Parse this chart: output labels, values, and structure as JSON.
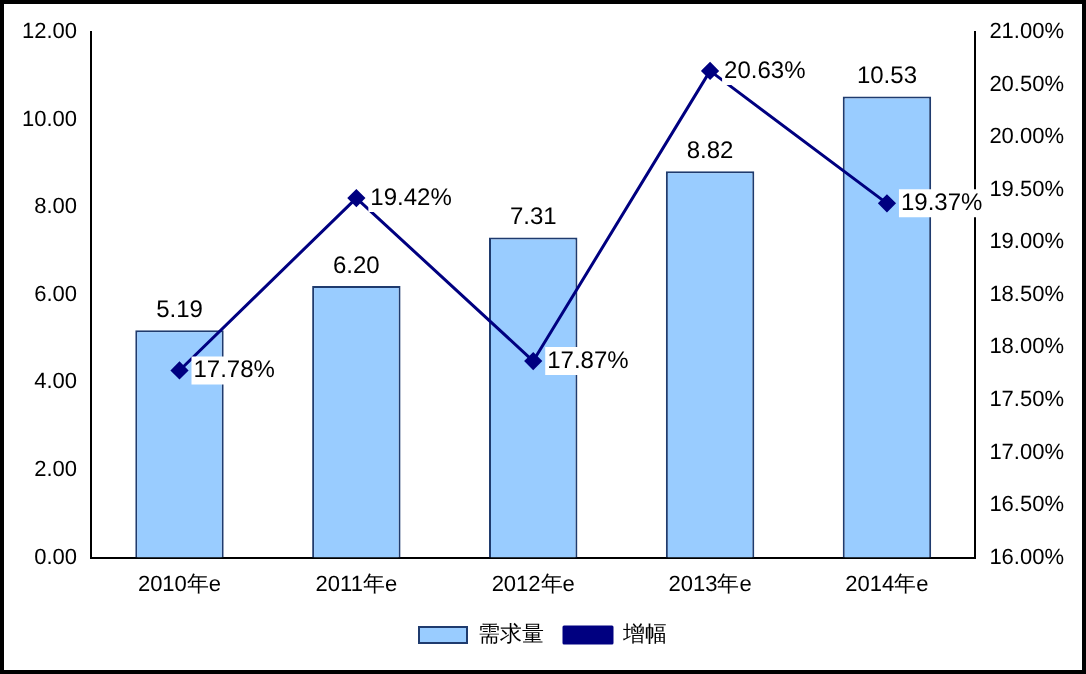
{
  "chart_data": {
    "type": "bar",
    "categories": [
      "2010年e",
      "2011年e",
      "2012年e",
      "2013年e",
      "2014年e"
    ],
    "series": [
      {
        "name": "需求量",
        "color": "#99ccff",
        "values": [
          5.19,
          6.2,
          7.31,
          8.82,
          10.53
        ],
        "value_labels": [
          "5.19",
          "6.20",
          "7.31",
          "8.82",
          "10.53"
        ]
      },
      {
        "name": "增幅",
        "type": "line",
        "axis": "y2",
        "color": "#000080",
        "values": [
          17.78,
          19.42,
          17.87,
          20.63,
          19.37
        ],
        "value_labels": [
          "17.78%",
          "19.42%",
          "17.87%",
          "20.63%",
          "19.37%"
        ]
      }
    ],
    "ylim": [
      0,
      12
    ],
    "yticks": [
      {
        "value": 0,
        "label": "0.00"
      },
      {
        "value": 2,
        "label": "2.00"
      },
      {
        "value": 4,
        "label": "4.00"
      },
      {
        "value": 6,
        "label": "6.00"
      },
      {
        "value": 8,
        "label": "8.00"
      },
      {
        "value": 10,
        "label": "10.00"
      },
      {
        "value": 12,
        "label": "12.00"
      }
    ],
    "y2lim": [
      16,
      21
    ],
    "y2ticks": [
      {
        "value": 16,
        "label": "16.00%"
      },
      {
        "value": 16.5,
        "label": "16.50%"
      },
      {
        "value": 17,
        "label": "17.00%"
      },
      {
        "value": 17.5,
        "label": "17.50%"
      },
      {
        "value": 18,
        "label": "18.00%"
      },
      {
        "value": 18.5,
        "label": "18.50%"
      },
      {
        "value": 19,
        "label": "19.00%"
      },
      {
        "value": 19.5,
        "label": "19.50%"
      },
      {
        "value": 20,
        "label": "20.00%"
      },
      {
        "value": 20.5,
        "label": "20.50%"
      },
      {
        "value": 21,
        "label": "21.00%"
      }
    ],
    "grid": false,
    "legend": "bottom",
    "marker": "diamond",
    "line_style": "solid"
  }
}
